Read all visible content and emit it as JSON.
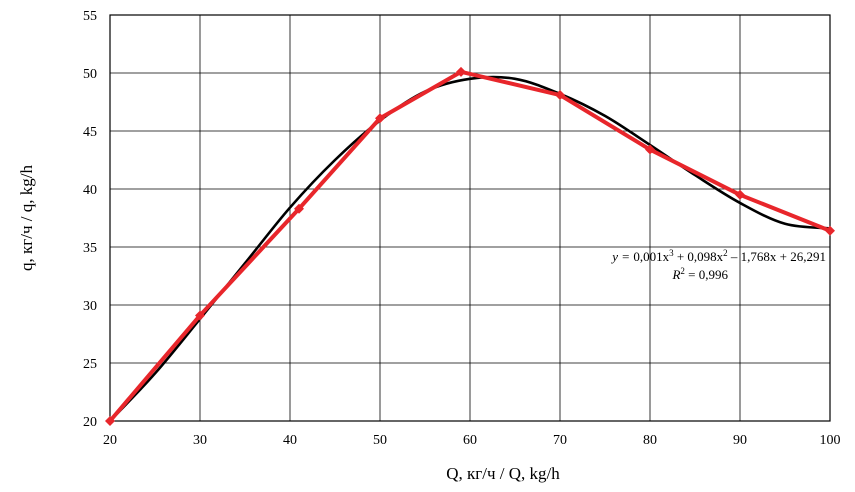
{
  "chart_data": {
    "type": "line",
    "title": "",
    "xlabel": "Q, кг/ч / Q, kg/h",
    "ylabel": "q, кг/ч / q, kg/h",
    "xlim": [
      20,
      100
    ],
    "ylim": [
      20,
      55
    ],
    "x_ticks": [
      20,
      30,
      40,
      50,
      60,
      70,
      80,
      90,
      100
    ],
    "y_ticks": [
      20,
      25,
      30,
      35,
      40,
      45,
      50,
      55
    ],
    "grid": true,
    "series": [
      {
        "color": "#e8262b",
        "marker": "diamond",
        "x": [
          20,
          30,
          41,
          50,
          59,
          70,
          80,
          90,
          100
        ],
        "y": [
          20,
          29.1,
          38.3,
          46.1,
          50.1,
          48.1,
          43.4,
          39.5,
          36.4
        ]
      },
      {
        "color": "#000000",
        "smooth": true,
        "x": [
          20,
          25,
          30,
          35,
          40,
          45,
          50,
          55,
          60,
          65,
          70,
          75,
          80,
          85,
          90,
          95,
          100
        ],
        "y": [
          20,
          24.1,
          28.8,
          33.6,
          38.4,
          42.5,
          45.9,
          48.4,
          49.5,
          49.5,
          48.2,
          46.3,
          43.8,
          41.2,
          38.8,
          37.0,
          36.6
        ]
      }
    ],
    "annotations": {
      "eq_prefix": "y = ",
      "eq_body_1": "0,001x",
      "eq_exp_1": "3",
      "eq_body_2": " + 0,098x",
      "eq_exp_2": "2",
      "eq_body_3": " – 1,768x + 26,291",
      "r2_label": "R",
      "r2_exp": "2",
      "r2_value": " = 0,996"
    }
  }
}
